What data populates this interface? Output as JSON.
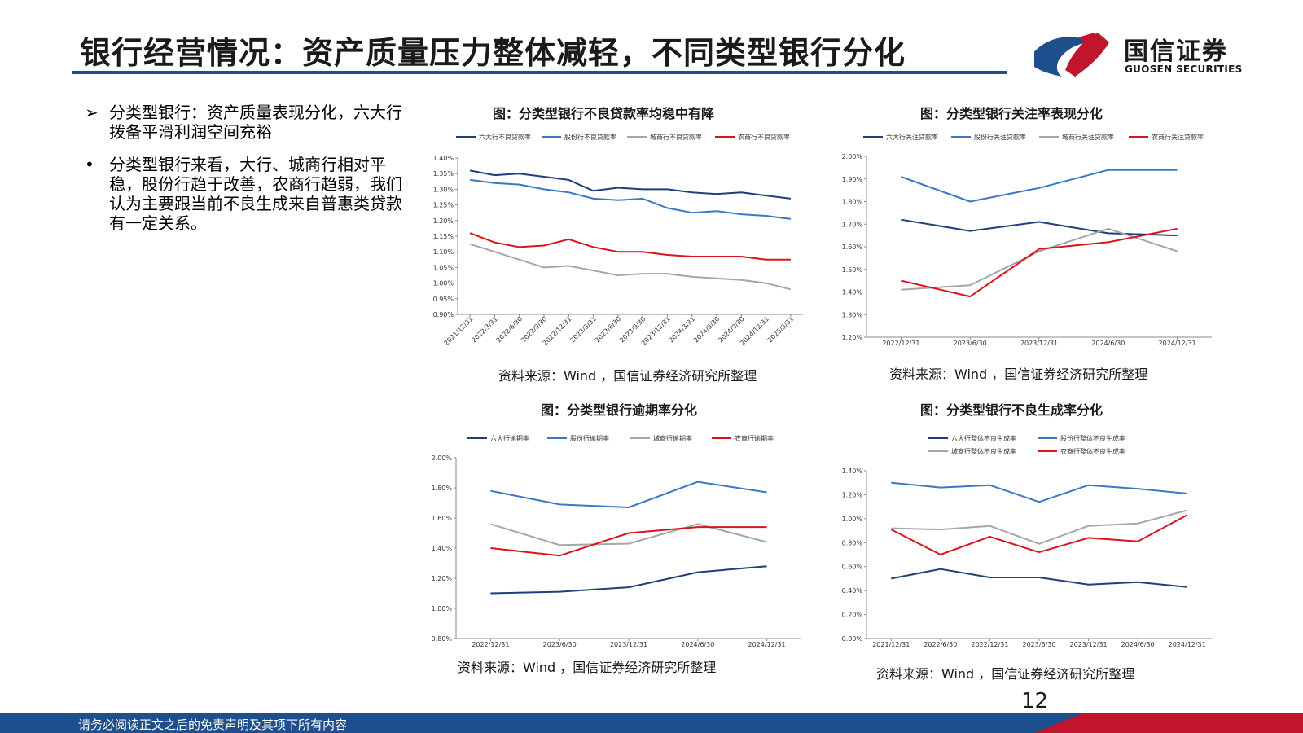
{
  "header": {
    "title": "银行经营情况：资产质量压力整体减轻，不同类型银行分化",
    "logo_cn": "国信证券",
    "logo_en": "GUOSEN SECURITIES"
  },
  "bullets": [
    {
      "marker": "➢",
      "text": "分类型银行：资产质量表现分化，六大行拨备平滑利润空间充裕"
    },
    {
      "marker": "•",
      "text": "分类型银行来看，大行、城商行相对平稳，股份行趋于改善，农商行趋弱，我们认为主要跟当前不良生成来自普惠类贷款有一定关系。"
    }
  ],
  "colors": {
    "brand_blue": "#1f4e8c",
    "brand_red": "#c0152c"
  },
  "chart_data": [
    {
      "type": "line",
      "title": "图：分类型银行不良贷款率均稳中有降",
      "source": "资料来源：Wind ，国信证券经济研究所整理",
      "x": [
        "2021/12/31",
        "2022/3/31",
        "2022/6/30",
        "2022/9/30",
        "2022/12/31",
        "2023/3/31",
        "2023/6/30",
        "2023/9/30",
        "2023/12/31",
        "2024/3/31",
        "2024/6/30",
        "2024/9/30",
        "2024/12/31",
        "2025/3/31"
      ],
      "ylim": [
        0.9,
        1.4
      ],
      "yticks": [
        "0.90%",
        "0.95%",
        "1.00%",
        "1.05%",
        "1.10%",
        "1.15%",
        "1.20%",
        "1.25%",
        "1.30%",
        "1.35%",
        "1.40%"
      ],
      "legend_position": "top",
      "series": [
        {
          "name": "六大行不良贷款率",
          "color": "#1f3f7a",
          "values": [
            1.36,
            1.345,
            1.35,
            1.34,
            1.33,
            1.295,
            1.305,
            1.3,
            1.3,
            1.29,
            1.285,
            1.29,
            1.28,
            1.27
          ]
        },
        {
          "name": "股份行不良贷款率",
          "color": "#3b78c3",
          "values": [
            1.33,
            1.32,
            1.315,
            1.3,
            1.29,
            1.27,
            1.265,
            1.27,
            1.24,
            1.225,
            1.23,
            1.22,
            1.215,
            1.205
          ]
        },
        {
          "name": "城商行不良贷款率",
          "color": "#a6a6a6",
          "values": [
            1.125,
            1.1,
            1.075,
            1.05,
            1.055,
            1.04,
            1.025,
            1.03,
            1.03,
            1.02,
            1.015,
            1.01,
            1.0,
            0.98
          ]
        },
        {
          "name": "农商行不良贷款率",
          "color": "#d9141c",
          "values": [
            1.16,
            1.13,
            1.115,
            1.12,
            1.14,
            1.115,
            1.1,
            1.1,
            1.09,
            1.085,
            1.085,
            1.085,
            1.075,
            1.075
          ]
        }
      ]
    },
    {
      "type": "line",
      "title": "图：分类型银行关注率表现分化",
      "source": "资料来源：Wind ，国信证券经济研究所整理",
      "x": [
        "2022/12/31",
        "2023/6/30",
        "2023/12/31",
        "2024/6/30",
        "2024/12/31"
      ],
      "ylim": [
        1.2,
        2.0
      ],
      "yticks": [
        "1.20%",
        "1.30%",
        "1.40%",
        "1.50%",
        "1.60%",
        "1.70%",
        "1.80%",
        "1.90%",
        "2.00%"
      ],
      "legend_position": "top",
      "series": [
        {
          "name": "六大行关注贷款率",
          "color": "#1f3f7a",
          "values": [
            1.72,
            1.67,
            1.71,
            1.66,
            1.65
          ]
        },
        {
          "name": "股份行关注贷款率",
          "color": "#3b78c3",
          "values": [
            1.91,
            1.8,
            1.86,
            1.94,
            1.94
          ]
        },
        {
          "name": "城商行关注贷款率",
          "color": "#a6a6a6",
          "values": [
            1.41,
            1.43,
            1.58,
            1.68,
            1.58
          ]
        },
        {
          "name": "农商行关注贷款率",
          "color": "#d9141c",
          "values": [
            1.45,
            1.38,
            1.59,
            1.62,
            1.68
          ]
        }
      ]
    },
    {
      "type": "line",
      "title": "图：分类型银行逾期率分化",
      "source": "资料来源：Wind ，国信证券经济研究所整理",
      "x": [
        "2022/12/31",
        "2023/6/30",
        "2023/12/31",
        "2024/6/30",
        "2024/12/31"
      ],
      "ylim": [
        0.8,
        2.0
      ],
      "yticks": [
        "0.80%",
        "1.00%",
        "1.20%",
        "1.40%",
        "1.60%",
        "1.80%",
        "2.00%"
      ],
      "legend_position": "top",
      "series": [
        {
          "name": "六大行逾期率",
          "color": "#1f3f7a",
          "values": [
            1.1,
            1.11,
            1.14,
            1.24,
            1.28
          ]
        },
        {
          "name": "股份行逾期率",
          "color": "#3b78c3",
          "values": [
            1.78,
            1.69,
            1.67,
            1.84,
            1.77
          ]
        },
        {
          "name": "城商行逾期率",
          "color": "#a6a6a6",
          "values": [
            1.56,
            1.42,
            1.43,
            1.56,
            1.44
          ]
        },
        {
          "name": "农商行逾期率",
          "color": "#d9141c",
          "values": [
            1.4,
            1.35,
            1.5,
            1.54,
            1.54
          ]
        }
      ]
    },
    {
      "type": "line",
      "title": "图：分类型银行不良生成率分化",
      "source": "资料来源：Wind ，国信证券经济研究所整理",
      "x": [
        "2021/12/31",
        "2022/6/30",
        "2022/12/31",
        "2023/6/30",
        "2023/12/31",
        "2024/6/30",
        "2024/12/31"
      ],
      "ylim": [
        0.0,
        1.4
      ],
      "yticks": [
        "0.00%",
        "0.20%",
        "0.40%",
        "0.60%",
        "0.80%",
        "1.00%",
        "1.20%",
        "1.40%"
      ],
      "legend_position": "top",
      "series": [
        {
          "name": "六大行整体不良生成率",
          "color": "#1f3f7a",
          "values": [
            0.5,
            0.58,
            0.51,
            0.51,
            0.45,
            0.47,
            0.43
          ]
        },
        {
          "name": "股份行整体不良生成率",
          "color": "#3b78c3",
          "values": [
            1.3,
            1.26,
            1.28,
            1.14,
            1.28,
            1.25,
            1.21
          ]
        },
        {
          "name": "城商行整体不良生成率",
          "color": "#a6a6a6",
          "values": [
            0.92,
            0.91,
            0.94,
            0.79,
            0.94,
            0.96,
            1.07
          ]
        },
        {
          "name": "农商行整体不良生成率",
          "color": "#d9141c",
          "values": [
            0.91,
            0.7,
            0.85,
            0.72,
            0.84,
            0.81,
            1.03
          ]
        }
      ]
    }
  ],
  "page_number": "12",
  "footer": {
    "text": "请务必阅读正文之后的免责声明及其项下所有内容"
  }
}
